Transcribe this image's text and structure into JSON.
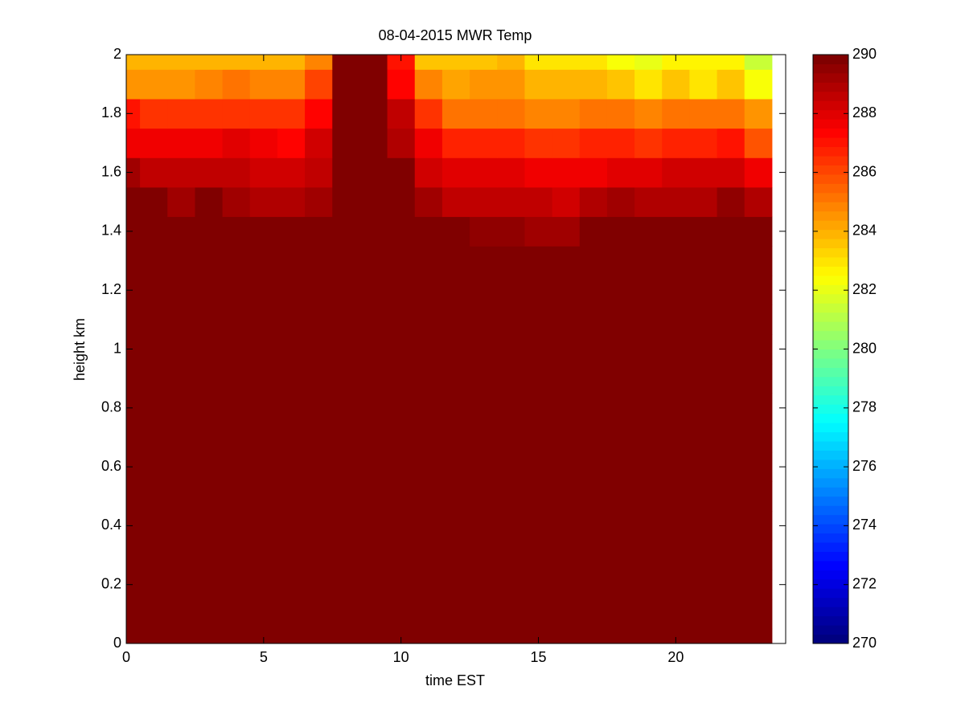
{
  "chart_data": {
    "type": "heatmap",
    "title": "08-04-2015 MWR Temp",
    "x_label": "time EST",
    "y_label": "height km",
    "colormap": "jet",
    "x": [
      0,
      1,
      2,
      3,
      4,
      5,
      6,
      7,
      8,
      9,
      10,
      11,
      12,
      13,
      14,
      15,
      16,
      17,
      18,
      19,
      20,
      21,
      22,
      23
    ],
    "y": [
      0,
      0.1,
      0.2,
      0.3,
      0.4,
      0.5,
      0.6,
      0.7,
      0.8,
      0.9,
      1,
      1.1,
      1.2,
      1.3,
      1.4,
      1.5,
      1.6,
      1.7,
      1.8,
      1.9,
      2
    ],
    "z": [
      [
        290,
        290,
        290,
        290,
        290,
        290,
        290,
        290,
        290,
        290,
        290,
        290,
        290,
        290,
        290,
        290,
        290,
        290,
        290,
        290,
        290,
        290,
        290,
        290
      ],
      [
        290,
        290,
        290,
        290,
        290,
        290,
        290,
        290,
        290,
        290,
        290,
        290,
        290,
        290,
        290,
        290,
        290,
        290,
        290,
        290,
        290,
        290,
        290,
        290
      ],
      [
        290,
        290,
        290,
        290,
        290,
        290,
        290,
        290,
        290,
        290,
        290,
        290,
        290,
        290,
        290,
        290,
        290,
        290,
        290,
        290,
        290,
        290,
        290,
        290
      ],
      [
        290,
        290,
        290,
        290,
        290,
        290,
        290,
        290,
        290,
        290,
        290,
        290,
        290,
        290,
        290,
        290,
        290,
        290,
        290,
        290,
        290,
        290,
        290,
        290
      ],
      [
        290,
        290,
        290,
        290,
        290,
        290,
        290,
        290,
        290,
        290,
        290,
        290,
        290,
        290,
        290,
        290,
        290,
        290,
        290,
        290,
        290,
        290,
        290,
        290
      ],
      [
        290,
        290,
        290,
        290,
        290,
        290,
        290,
        290,
        290,
        290,
        290,
        290,
        290,
        290,
        290,
        290,
        290,
        290,
        290,
        290,
        290,
        290,
        290,
        290
      ],
      [
        290,
        290,
        290,
        290,
        290,
        290,
        290,
        290,
        290,
        290,
        290,
        290,
        290,
        290,
        290,
        290,
        290,
        290,
        290,
        290,
        290,
        290,
        290,
        290
      ],
      [
        290,
        290,
        290,
        290,
        290,
        290,
        290,
        290,
        290,
        290,
        290,
        290,
        290,
        290,
        290,
        290,
        290,
        290,
        290,
        290,
        290,
        290,
        290,
        290
      ],
      [
        290,
        290,
        290,
        290,
        290,
        290,
        290,
        290,
        290,
        290,
        290,
        290,
        290,
        290,
        290,
        290,
        290,
        290,
        290,
        290,
        290,
        290,
        290,
        290
      ],
      [
        290,
        290,
        290,
        290,
        290,
        290,
        290,
        290,
        290,
        290,
        290,
        290,
        290,
        290,
        290,
        290,
        290,
        290,
        290,
        290,
        290,
        290,
        290,
        290
      ],
      [
        290,
        290,
        290,
        290,
        290,
        290,
        290,
        290,
        290,
        290,
        290,
        290,
        290,
        290,
        290,
        290,
        290,
        290,
        290,
        290,
        290,
        290,
        290,
        290
      ],
      [
        290,
        290,
        290,
        290,
        290,
        290,
        290,
        290,
        290,
        290,
        290,
        290,
        290,
        290,
        290,
        290,
        290,
        290,
        290,
        290,
        290,
        290,
        290,
        290
      ],
      [
        290,
        290,
        290,
        290,
        290,
        290,
        290,
        290,
        290,
        290,
        290,
        290,
        290,
        290,
        290,
        290,
        290,
        290,
        290,
        290,
        290,
        290,
        290,
        290
      ],
      [
        290,
        290,
        290,
        290,
        290,
        290,
        290,
        290,
        290,
        290,
        290,
        290,
        290,
        290,
        290,
        290,
        290,
        290,
        290,
        290,
        290,
        290,
        290,
        290
      ],
      [
        290,
        290,
        290,
        290,
        290,
        290,
        290,
        290,
        290,
        290,
        290,
        290,
        290,
        289.5,
        289.5,
        289.3,
        289.3,
        290,
        290,
        290,
        290,
        290,
        290,
        290
      ],
      [
        289.7,
        289.7,
        289.2,
        289.8,
        289.3,
        289,
        288.8,
        289.3,
        290,
        290,
        290,
        289.2,
        288.7,
        288.7,
        288.7,
        288.5,
        288.3,
        288.8,
        289.1,
        289,
        289,
        289,
        289.6,
        288.9
      ],
      [
        289.2,
        288.7,
        288.7,
        288.7,
        288.7,
        288.4,
        288.2,
        288.6,
        290,
        290,
        290,
        288.4,
        287.9,
        287.9,
        287.9,
        287.6,
        287.7,
        287.6,
        288,
        288,
        288.2,
        288.2,
        288.2,
        287.8
      ],
      [
        287.7,
        287.7,
        287.7,
        287.7,
        288,
        287.7,
        287.3,
        288.3,
        290,
        290,
        289,
        287.7,
        286.7,
        286.7,
        286.7,
        286.3,
        286.5,
        286.7,
        286.7,
        286.3,
        286.6,
        286.6,
        287,
        285.8
      ],
      [
        287,
        286.5,
        286.3,
        286.5,
        286.5,
        286.3,
        286.3,
        287.5,
        290,
        290,
        288.5,
        286.3,
        285.3,
        285.3,
        285.3,
        285,
        284.8,
        285.2,
        285.2,
        285,
        285.2,
        285.2,
        285.2,
        284.5
      ],
      [
        284.5,
        284.5,
        284.5,
        285,
        285.3,
        285,
        285,
        286,
        290,
        290,
        287.5,
        285,
        284.3,
        284.6,
        284.6,
        284,
        284,
        284,
        283.5,
        283,
        283.5,
        283,
        283.7,
        282.5
      ],
      [
        284,
        284,
        284,
        284,
        284,
        284,
        284,
        285,
        290,
        290,
        287,
        283.5,
        283.5,
        283.5,
        284,
        283,
        283,
        283,
        282.5,
        282,
        282.8,
        282.8,
        282.8,
        281.5
      ]
    ],
    "xlim": [
      0,
      24
    ],
    "xticks": [
      0,
      5,
      10,
      15,
      20
    ],
    "ylim": [
      0,
      2
    ],
    "yticks": [
      0,
      0.2,
      0.4,
      0.6,
      0.8,
      1,
      1.2,
      1.4,
      1.6,
      1.8,
      2
    ],
    "clim": [
      270,
      290
    ],
    "cticks": [
      270,
      272,
      274,
      276,
      278,
      280,
      282,
      284,
      286,
      288,
      290
    ]
  }
}
